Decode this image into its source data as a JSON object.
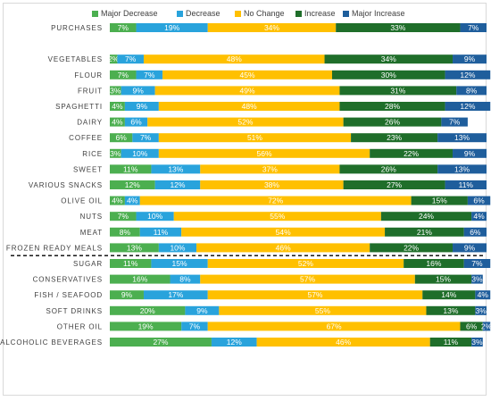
{
  "chart_data": {
    "type": "bar",
    "orientation": "horizontal",
    "stacked": "100%",
    "legend_position": "top",
    "series": [
      {
        "name": "Major Decrease",
        "color": "#4caf50"
      },
      {
        "name": "Decrease",
        "color": "#29a3dc"
      },
      {
        "name": "No Change",
        "color": "#ffc000"
      },
      {
        "name": "Increase",
        "color": "#1f6e2a"
      },
      {
        "name": "Major Increase",
        "color": "#1f5e9c"
      }
    ],
    "label_colors": {
      "Major Decrease": "#ffffff",
      "Decrease": "#ffffff",
      "No Change": "#ffffff",
      "Increase": "#ffffff",
      "Major Increase": "#ffffff"
    },
    "rows": [
      {
        "category": "PURCHASES",
        "values": [
          7,
          19,
          34,
          33,
          7
        ],
        "labels": [
          "7%",
          "19%",
          "34%",
          "33%",
          "7%"
        ]
      },
      {
        "category": "",
        "values": [],
        "labels": []
      },
      {
        "category": "VEGETABLES",
        "values": [
          2,
          7,
          48,
          34,
          9
        ],
        "labels": [
          "2%",
          "7%",
          "48%",
          "34%",
          "9%"
        ]
      },
      {
        "category": "FLOUR",
        "values": [
          7,
          7,
          45,
          30,
          12
        ],
        "labels": [
          "7%",
          "7%",
          "45%",
          "30%",
          "12%"
        ]
      },
      {
        "category": "FRUIT",
        "values": [
          3,
          9,
          49,
          31,
          8
        ],
        "labels": [
          "3%",
          "9%",
          "49%",
          "31%",
          "8%"
        ]
      },
      {
        "category": "SPAGHETTI",
        "values": [
          4,
          9,
          48,
          28,
          12
        ],
        "labels": [
          "4%",
          "9%",
          "48%",
          "28%",
          "12%"
        ]
      },
      {
        "category": "DAIRY",
        "values": [
          4,
          6,
          52,
          26,
          7
        ],
        "labels": [
          "4%",
          "6%",
          "52%",
          "26%",
          "7%"
        ]
      },
      {
        "category": "COFFEE",
        "values": [
          6,
          7,
          51,
          23,
          13
        ],
        "labels": [
          "6%",
          "7%",
          "51%",
          "23%",
          "13%"
        ]
      },
      {
        "category": "RICE",
        "values": [
          3,
          10,
          56,
          22,
          9
        ],
        "labels": [
          "3%",
          "10%",
          "56%",
          "22%",
          "9%"
        ]
      },
      {
        "category": "SWEET",
        "values": [
          11,
          13,
          37,
          26,
          13
        ],
        "labels": [
          "11%",
          "13%",
          "37%",
          "26%",
          "13%"
        ]
      },
      {
        "category": "VARIOUS SNACKS",
        "values": [
          12,
          12,
          38,
          27,
          11
        ],
        "labels": [
          "12%",
          "12%",
          "38%",
          "27%",
          "11%"
        ]
      },
      {
        "category": "OLIVE OIL",
        "values": [
          4,
          4,
          72,
          15,
          6
        ],
        "labels": [
          "4%",
          "4%",
          "72%",
          "15%",
          "6%"
        ]
      },
      {
        "category": "NUTS",
        "values": [
          7,
          10,
          55,
          24,
          4
        ],
        "labels": [
          "7%",
          "10%",
          "55%",
          "24%",
          "4%"
        ]
      },
      {
        "category": "MEAT",
        "values": [
          8,
          11,
          54,
          21,
          6
        ],
        "labels": [
          "8%",
          "11%",
          "54%",
          "21%",
          "6%"
        ]
      },
      {
        "category": "FROZEN READY MEALS",
        "values": [
          13,
          10,
          46,
          22,
          9
        ],
        "labels": [
          "13%",
          "10%",
          "46%",
          "22%",
          "9%"
        ]
      },
      {
        "category": "SUGAR",
        "values": [
          11,
          15,
          52,
          16,
          7
        ],
        "labels": [
          "11%",
          "15%",
          "52%",
          "16%",
          "7%"
        ]
      },
      {
        "category": "CONSERVATIVES",
        "values": [
          16,
          8,
          57,
          15,
          3
        ],
        "labels": [
          "16%",
          "8%",
          "57%",
          "15%",
          "3%"
        ]
      },
      {
        "category": "FISH / SEAFOOD",
        "values": [
          9,
          17,
          57,
          14,
          4
        ],
        "labels": [
          "9%",
          "17%",
          "57%",
          "14%",
          "4%"
        ]
      },
      {
        "category": "SOFT DRINKS",
        "values": [
          20,
          9,
          55,
          13,
          3
        ],
        "labels": [
          "20%",
          "9%",
          "55%",
          "13%",
          "3%"
        ]
      },
      {
        "category": "OTHER OIL",
        "values": [
          19,
          7,
          67,
          6,
          2
        ],
        "labels": [
          "19%",
          "7%",
          "67%",
          "6%",
          "2%"
        ]
      },
      {
        "category": "ALCOHOLIC BEVERAGES",
        "values": [
          27,
          12,
          46,
          11,
          3
        ],
        "labels": [
          "27%",
          "12%",
          "46%",
          "11%",
          "3%"
        ]
      }
    ],
    "divider_after": "FROZEN READY MEALS",
    "grid": false,
    "xlim": [
      0,
      100
    ]
  }
}
